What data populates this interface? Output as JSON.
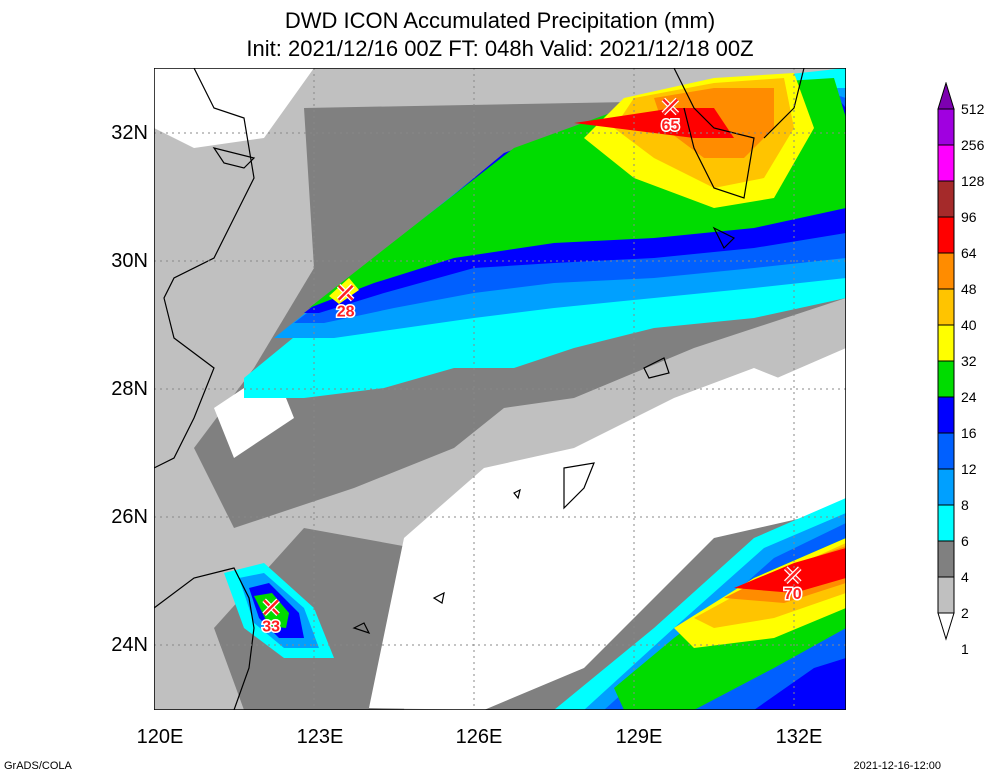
{
  "header": {
    "title": "DWD ICON Accumulated Precipitation (mm)",
    "subtitle": "Init: 2021/12/16 00Z  FT: 048h  Valid: 2021/12/18 00Z"
  },
  "map": {
    "lat_labels": [
      "32N",
      "30N",
      "28N",
      "26N",
      "24N"
    ],
    "lon_labels": [
      "120E",
      "123E",
      "126E",
      "129E",
      "132E"
    ],
    "lat_range": [
      23,
      33
    ],
    "lon_range": [
      120,
      133
    ],
    "maxima": [
      {
        "lon": 123.6,
        "lat": 29.5,
        "label": "28"
      },
      {
        "lon": 129.7,
        "lat": 32.4,
        "label": "65"
      },
      {
        "lon": 122.2,
        "lat": 24.6,
        "label": "33"
      },
      {
        "lon": 132.0,
        "lat": 25.1,
        "label": "70"
      }
    ]
  },
  "colorbar": {
    "labels": [
      "512",
      "256",
      "128",
      "96",
      "64",
      "48",
      "40",
      "32",
      "24",
      "16",
      "12",
      "8",
      "6",
      "4",
      "2",
      "1"
    ],
    "colors": [
      "#7d00b0",
      "#a000e0",
      "#ff00ff",
      "#a52a2a",
      "#ff0000",
      "#ff8c00",
      "#ffc400",
      "#ffff00",
      "#00dc00",
      "#0000ff",
      "#0060ff",
      "#00a0ff",
      "#00ffff",
      "#808080",
      "#c0c0c0",
      "#ffffff"
    ]
  },
  "footer": {
    "left": "GrADS/COLA",
    "right": "2021-12-16-12:00"
  }
}
